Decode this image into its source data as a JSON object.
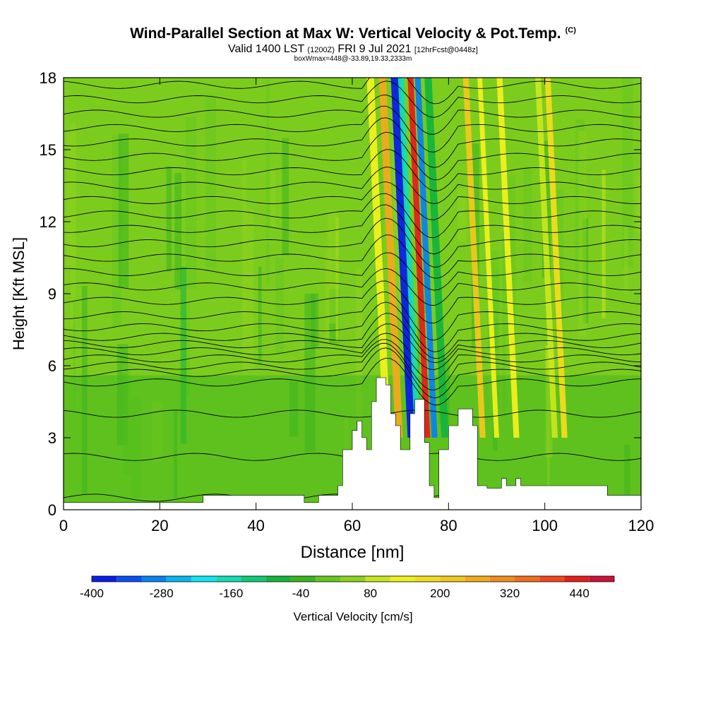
{
  "header": {
    "title": "Wind-Parallel Section at Max W: Vertical Velocity & Pot.Temp.",
    "title_mark": "(C)",
    "valid_prefix": "Valid 1400 LST",
    "valid_utc": "(1200Z)",
    "valid_date": "FRI 9 Jul 2021",
    "forecast": "[12hrFcst@0448z]",
    "box_info": "boxWmax=448@-33.89,19.33,2333m"
  },
  "chart_data": {
    "type": "heatmap",
    "title": "Wind-Parallel Section at Max W: Vertical Velocity & Pot.Temp.",
    "xlabel": "Distance [nm]",
    "ylabel": "Height [Kft MSL]",
    "xlim": [
      0,
      120
    ],
    "ylim": [
      0,
      18
    ],
    "xticks": [
      0,
      20,
      40,
      60,
      80,
      100,
      120
    ],
    "yticks": [
      0,
      3,
      6,
      9,
      12,
      15,
      18
    ],
    "colorbar": {
      "label": "Vertical Velocity [cm/s]",
      "tick_labels": [
        "-400",
        "-280",
        "-160",
        "-40",
        "80",
        "200",
        "320",
        "440"
      ],
      "tick_values": [
        -400,
        -280,
        -160,
        -40,
        80,
        200,
        320,
        440
      ],
      "range": [
        -400,
        500
      ],
      "colors": [
        "#0a1ee6",
        "#0a50f0",
        "#0a82f0",
        "#0ab4f0",
        "#14e6f0",
        "#14dcb4",
        "#14c878",
        "#14b43c",
        "#3cb41e",
        "#64c81e",
        "#8cd21e",
        "#c8e61e",
        "#f0f01e",
        "#f0dc1e",
        "#f0c81e",
        "#f0aa1e",
        "#f08c1e",
        "#f06e1e",
        "#f0461e",
        "#e61e1e",
        "#c8143c"
      ]
    },
    "terrain_profile": [
      [
        0,
        0.3
      ],
      [
        29,
        0.3
      ],
      [
        29,
        0.6
      ],
      [
        50,
        0.6
      ],
      [
        50,
        0.3
      ],
      [
        53,
        0.3
      ],
      [
        53,
        0.6
      ],
      [
        57,
        0.6
      ],
      [
        57,
        1.0
      ],
      [
        58,
        1.0
      ],
      [
        58,
        2.5
      ],
      [
        60,
        2.5
      ],
      [
        60,
        3.3
      ],
      [
        61,
        3.3
      ],
      [
        61,
        3.7
      ],
      [
        62,
        3.7
      ],
      [
        62,
        3.0
      ],
      [
        63,
        3.0
      ],
      [
        63,
        2.5
      ],
      [
        64,
        2.5
      ],
      [
        64,
        4.5
      ],
      [
        65,
        4.5
      ],
      [
        65,
        5.5
      ],
      [
        67,
        5.5
      ],
      [
        67,
        5.2
      ],
      [
        68,
        5.2
      ],
      [
        68,
        4.0
      ],
      [
        69,
        4.0
      ],
      [
        69,
        3.5
      ],
      [
        70,
        3.5
      ],
      [
        70,
        2.5
      ],
      [
        72,
        2.5
      ],
      [
        72,
        4.0
      ],
      [
        73,
        4.0
      ],
      [
        73,
        4.6
      ],
      [
        75,
        4.6
      ],
      [
        75,
        2.8
      ],
      [
        76,
        2.8
      ],
      [
        76,
        1.0
      ],
      [
        77,
        1.0
      ],
      [
        77,
        0.5
      ],
      [
        78,
        0.5
      ],
      [
        78,
        2.5
      ],
      [
        80,
        2.5
      ],
      [
        80,
        3.5
      ],
      [
        82,
        3.5
      ],
      [
        82,
        4.2
      ],
      [
        85,
        4.2
      ],
      [
        85,
        3.5
      ],
      [
        86,
        3.5
      ],
      [
        86,
        1.0
      ],
      [
        88,
        1.0
      ],
      [
        88,
        0.9
      ],
      [
        91,
        0.9
      ],
      [
        91,
        1.3
      ],
      [
        92,
        1.3
      ],
      [
        92,
        1.0
      ],
      [
        94,
        1.0
      ],
      [
        94,
        1.3
      ],
      [
        95,
        1.3
      ],
      [
        95,
        1.0
      ],
      [
        113,
        1.0
      ],
      [
        113,
        0.6
      ],
      [
        120,
        0.6
      ]
    ],
    "velocity_bands": [
      {
        "x": 66.5,
        "w": 1.5,
        "value": 140
      },
      {
        "x": 69.0,
        "w": 1.5,
        "value": 260
      },
      {
        "x": 71.5,
        "w": 2.0,
        "value": -400
      },
      {
        "x": 73.0,
        "w": 1.2,
        "value": -160
      },
      {
        "x": 75.0,
        "w": 1.2,
        "value": 440
      },
      {
        "x": 76.5,
        "w": 1.2,
        "value": -280
      },
      {
        "x": 78.5,
        "w": 1.5,
        "value": -100
      },
      {
        "x": 86.5,
        "w": 1.2,
        "value": 200
      },
      {
        "x": 89.5,
        "w": 1.0,
        "value": 140
      },
      {
        "x": 93.5,
        "w": 1.2,
        "value": 120
      },
      {
        "x": 101.5,
        "w": 1.2,
        "value": 100
      },
      {
        "x": 103.5,
        "w": 1.2,
        "value": 160
      }
    ],
    "isentrope_heights": [
      0.5,
      2.2,
      4.0,
      5.3,
      5.7,
      6.0,
      6.3,
      6.6,
      6.9,
      7.2,
      7.6,
      8.1,
      8.7,
      9.3,
      9.9,
      10.5,
      11.1,
      11.7,
      12.3,
      12.9,
      13.5,
      14.1,
      14.7,
      15.3,
      15.9,
      16.5,
      17.1,
      17.7
    ]
  }
}
